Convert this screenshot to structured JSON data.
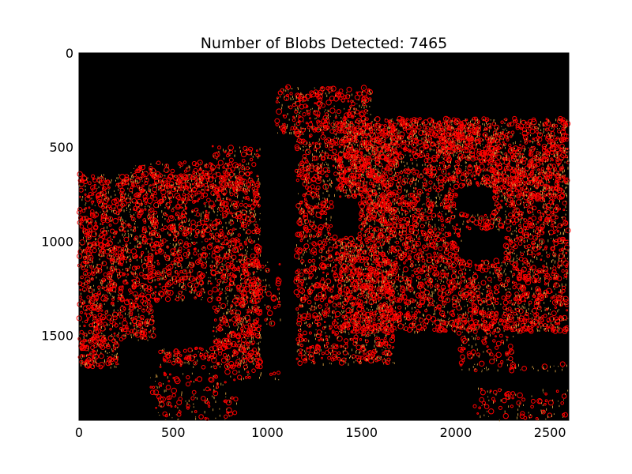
{
  "figure": {
    "title": "Number of Blobs Detected: 7465",
    "image_width": 2600,
    "image_height": 1950,
    "x_ticks": [
      "0",
      "500",
      "1000",
      "1500",
      "2000",
      "2500"
    ],
    "y_ticks": [
      "0",
      "500",
      "1000",
      "1500"
    ],
    "x_tick_values": [
      0,
      500,
      1000,
      1500,
      2000,
      2500
    ],
    "y_tick_values": [
      0,
      500,
      1000,
      1500
    ],
    "background_color": "#000000",
    "blob_color": "#ff0000",
    "edge_color": "#d8a040"
  }
}
